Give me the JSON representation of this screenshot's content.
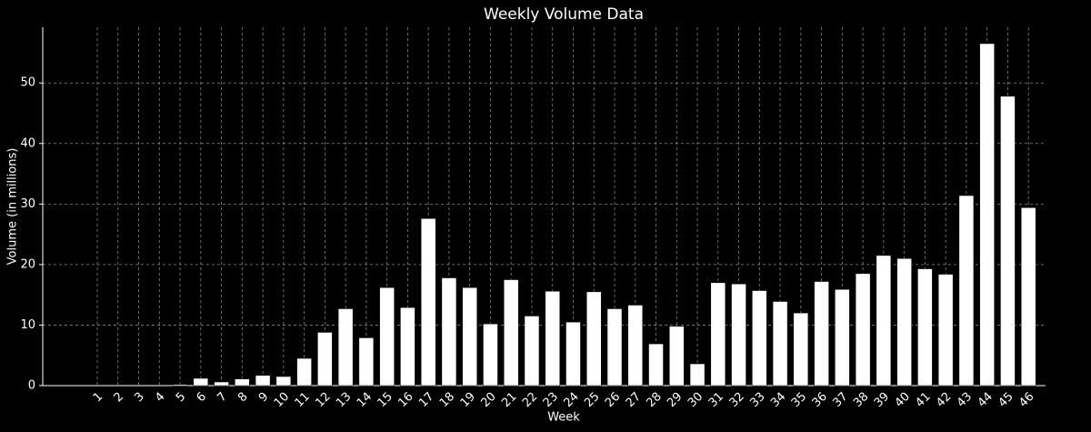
{
  "chart_data": {
    "type": "bar",
    "title": "Weekly Volume Data",
    "x_label": "Week",
    "y_label": "Volume (in millions)",
    "categories": [
      "1",
      "2",
      "3",
      "4",
      "5",
      "6",
      "7",
      "8",
      "9",
      "10",
      "11",
      "12",
      "13",
      "14",
      "15",
      "16",
      "17",
      "18",
      "19",
      "20",
      "21",
      "22",
      "23",
      "24",
      "25",
      "26",
      "27",
      "28",
      "29",
      "30",
      "31",
      "32",
      "33",
      "34",
      "35",
      "36",
      "37",
      "38",
      "39",
      "40",
      "41",
      "42",
      "43",
      "44",
      "45",
      "46"
    ],
    "values": [
      0,
      0,
      0,
      0,
      0.2,
      1.2,
      0.6,
      1.1,
      1.7,
      1.5,
      4.5,
      8.8,
      12.7,
      7.9,
      16.2,
      12.9,
      27.6,
      17.8,
      16.2,
      10.2,
      17.5,
      11.5,
      15.6,
      10.5,
      15.5,
      12.7,
      13.3,
      6.9,
      9.8,
      3.6,
      17.0,
      16.8,
      15.7,
      13.9,
      12.0,
      17.2,
      15.9,
      18.5,
      21.5,
      21.0,
      19.3,
      18.4,
      31.4,
      56.5,
      47.8,
      29.4
    ],
    "color": "#ffffff",
    "ylim": [
      0,
      59.2
    ],
    "yticks": [
      0,
      10,
      20,
      30,
      40,
      50
    ],
    "grid": true
  }
}
